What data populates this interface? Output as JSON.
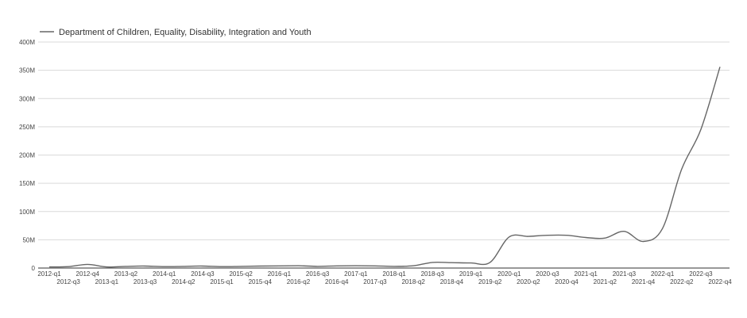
{
  "chart_data": {
    "type": "line",
    "title": "",
    "xlabel": "",
    "ylabel": "",
    "legend_position": "top-left",
    "grid": true,
    "ylim": [
      0,
      400000000
    ],
    "y_ticks": [
      {
        "value": 0,
        "label": "0"
      },
      {
        "value": 50000000,
        "label": "50M"
      },
      {
        "value": 100000000,
        "label": "100M"
      },
      {
        "value": 150000000,
        "label": "150M"
      },
      {
        "value": 200000000,
        "label": "200M"
      },
      {
        "value": 250000000,
        "label": "250M"
      },
      {
        "value": 300000000,
        "label": "300M"
      },
      {
        "value": 350000000,
        "label": "350M"
      },
      {
        "value": 400000000,
        "label": "400M"
      }
    ],
    "categories": [
      "2012-q1",
      "2012-q3",
      "2012-q4",
      "2013-q1",
      "2013-q2",
      "2013-q3",
      "2014-q1",
      "2014-q2",
      "2014-q3",
      "2015-q1",
      "2015-q2",
      "2015-q4",
      "2016-q1",
      "2016-q2",
      "2016-q3",
      "2016-q4",
      "2017-q1",
      "2017-q3",
      "2018-q1",
      "2018-q2",
      "2018-q3",
      "2018-q4",
      "2019-q1",
      "2019-q2",
      "2020-q1",
      "2020-q2",
      "2020-q3",
      "2020-q4",
      "2021-q1",
      "2021-q2",
      "2021-q3",
      "2021-q4",
      "2022-q1",
      "2022-q2",
      "2022-q3",
      "2022-q4"
    ],
    "series": [
      {
        "name": "Department of Children, Equality, Disability, Integration and Youth",
        "color": "#666666",
        "values": [
          2000000,
          2500000,
          6500000,
          2000000,
          3000000,
          3500000,
          2500000,
          3000000,
          3500000,
          2500000,
          3000000,
          3500000,
          3800000,
          4000000,
          3000000,
          3800000,
          4000000,
          3800000,
          3000000,
          4000000,
          10000000,
          9500000,
          9000000,
          10000000,
          55000000,
          56000000,
          58000000,
          58000000,
          54000000,
          53000000,
          65000000,
          47000000,
          70000000,
          175000000,
          245000000,
          356000000
        ]
      }
    ]
  }
}
